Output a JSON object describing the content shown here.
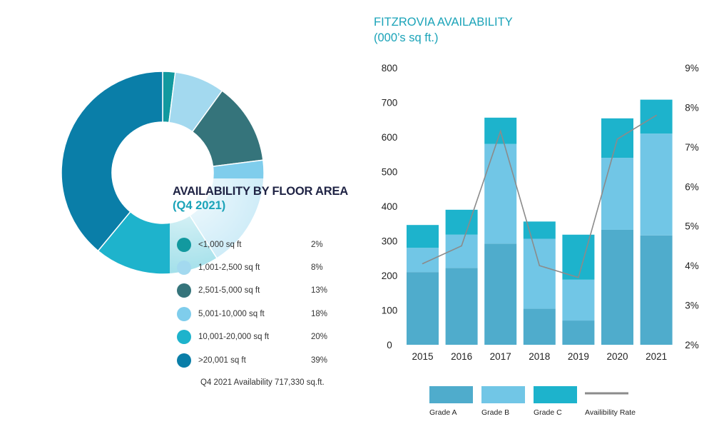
{
  "chart_data": [
    {
      "type": "pie",
      "title": "AVAILABILITY BY FLOOR AREA",
      "subtitle": "(Q4 2021)",
      "slices": [
        {
          "label": "<1,000 sq ft",
          "value": 2,
          "display": "2%",
          "color": "#12999f"
        },
        {
          "label": "1,001-2,500 sq ft",
          "value": 8,
          "display": "8%",
          "color": "#a3d9ef"
        },
        {
          "label": "2,501-5,000 sq ft",
          "value": 13,
          "display": "13%",
          "color": "#35747b"
        },
        {
          "label": "5,001-10,000 sq ft",
          "value": 18,
          "display": "18%",
          "color": "#7fcdec"
        },
        {
          "label": "10,001-20,000 sq ft",
          "value": 20,
          "display": "20%",
          "color": "#1eb3cc"
        },
        {
          "label": ">20,001 sq ft",
          "value": 39,
          "display": "39%",
          "color": "#0a7ea8"
        }
      ],
      "note": "Q4 2021 Availability 717,330 sq.ft."
    },
    {
      "type": "bar",
      "title": "FITZROVIA AVAILABILITY",
      "subtitle": "(000’s sq ft.)",
      "categories": [
        "2015",
        "2016",
        "2017",
        "2018",
        "2019",
        "2020",
        "2021"
      ],
      "series": [
        {
          "name": "Grade A",
          "values": [
            210,
            222,
            292,
            104,
            70,
            332,
            316
          ],
          "color": "#4faccc"
        },
        {
          "name": "Grade B",
          "values": [
            70,
            96,
            288,
            202,
            118,
            208,
            294
          ],
          "color": "#71c6e6"
        },
        {
          "name": "Grade C",
          "values": [
            66,
            72,
            76,
            50,
            130,
            114,
            98
          ],
          "color": "#1db3cc"
        }
      ],
      "line_series": {
        "name": "Availibility Rate",
        "values": [
          4.05,
          4.5,
          7.4,
          4.0,
          3.7,
          7.2,
          7.8
        ],
        "color": "#8b8b8b"
      },
      "ylim": [
        0,
        800
      ],
      "yticks": [
        "0",
        "100",
        "200",
        "300",
        "400",
        "500",
        "600",
        "700",
        "800"
      ],
      "y2lim": [
        2,
        9
      ],
      "y2ticks": [
        "2%",
        "3%",
        "4%",
        "5%",
        "6%",
        "7%",
        "8%",
        "9%"
      ]
    }
  ]
}
